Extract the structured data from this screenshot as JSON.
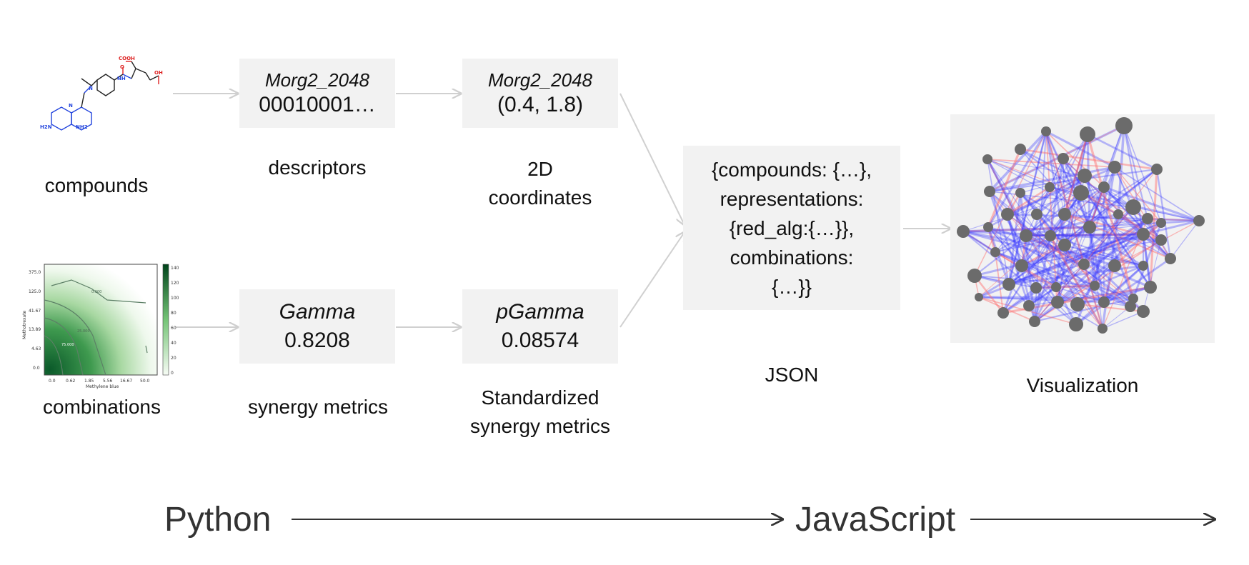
{
  "compounds": {
    "label": "compounds",
    "atoms": {
      "cooh_1": "COOH",
      "cooh_2": "OH",
      "nh": "NH",
      "n": "N",
      "o": "O",
      "nh2_a": "H2N",
      "nh2_b": "NH2",
      "n_ring": "N"
    }
  },
  "combinations": {
    "label": "combinations",
    "heatmap": {
      "xlabel": "Methylene blue",
      "ylabel": "Methotrexate",
      "xticks": [
        "0.0",
        "0.62",
        "1.85",
        "5.56",
        "16.67",
        "50.0"
      ],
      "yticks": [
        "375.0",
        "125.0",
        "41.67",
        "13.89",
        "4.63",
        "0.0"
      ],
      "cbar_ticks": [
        "140",
        "120",
        "100",
        "80",
        "60",
        "40",
        "20",
        "0"
      ],
      "contour_labels": [
        "0.000",
        "25.000",
        "75.000"
      ],
      "colors": {
        "high": "#0b5a2a",
        "low": "#ffffff"
      }
    }
  },
  "descriptors": {
    "title": "Morg2_2048",
    "value": "00010001…",
    "label": "descriptors"
  },
  "coordinates": {
    "title": "Morg2_2048",
    "value": "(0.4, 1.8)",
    "label_line1": "2D",
    "label_line2": "coordinates"
  },
  "synergy": {
    "title": "Gamma",
    "value": "0.8208",
    "label": "synergy metrics"
  },
  "std_synergy": {
    "title": "pGamma",
    "value": "0.08574",
    "label_line1": "Standardized",
    "label_line2": "synergy metrics"
  },
  "json": {
    "lines": [
      "{compounds: {…},",
      "representations:",
      "{red_alg:{…}},",
      "combinations:",
      "{…}}"
    ],
    "label": "JSON"
  },
  "visualization": {
    "label": "Visualization",
    "colors": {
      "edge_blue": "#3b3bff",
      "edge_red": "#ff6b6b",
      "node": "#6b6b6b"
    }
  },
  "pipeline": {
    "python": "Python",
    "javascript": "JavaScript"
  }
}
